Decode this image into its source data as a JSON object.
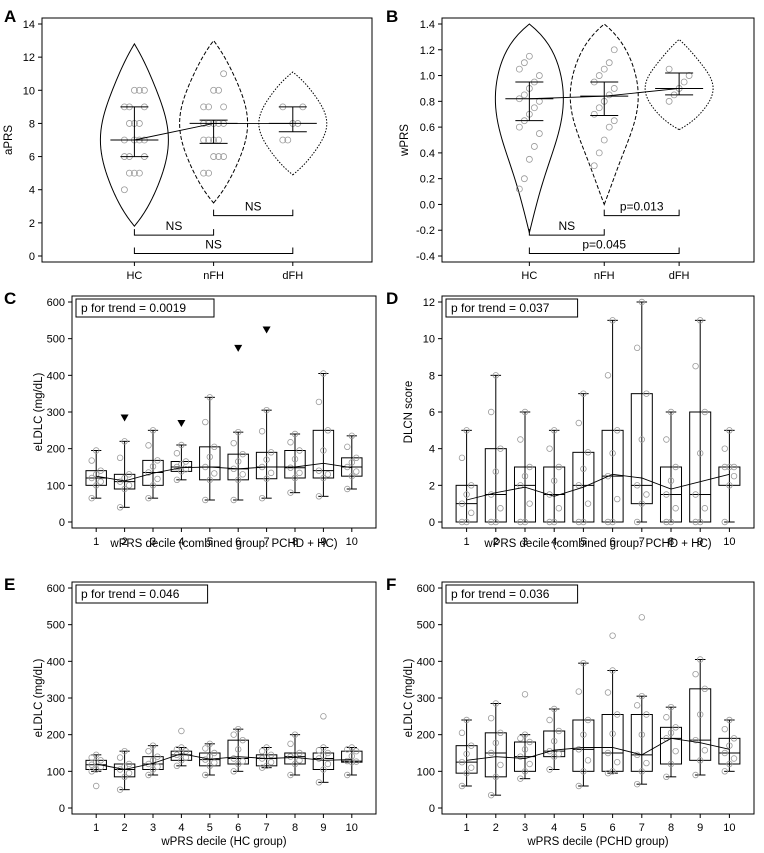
{
  "panels": {
    "A": "A",
    "B": "B",
    "C": "C",
    "D": "D",
    "E": "E",
    "F": "F"
  },
  "chart_data": [
    {
      "panel": "A",
      "type": "violin",
      "categories": [
        "HC",
        "nFH",
        "dFH"
      ],
      "ylabel": "aPRS",
      "xlabel": "",
      "ylim": [
        0,
        14
      ],
      "yticks": [
        0,
        2,
        4,
        6,
        8,
        10,
        12,
        14
      ],
      "medians": [
        7,
        8,
        8
      ],
      "q1": [
        6,
        6.8,
        7.5
      ],
      "q3": [
        9,
        8.2,
        9
      ],
      "whisker_lo": [
        6,
        7,
        7.5
      ],
      "whisker_hi": [
        9,
        8.2,
        9
      ],
      "violin_range": [
        [
          1.8,
          12.8
        ],
        [
          3.2,
          13.0
        ],
        [
          4.9,
          11.1
        ]
      ],
      "points": [
        [
          4,
          5,
          5,
          5,
          6,
          6,
          6,
          7,
          7,
          7,
          7,
          8,
          8,
          8,
          9,
          9,
          9,
          10,
          10,
          10
        ],
        [
          5,
          5,
          6,
          6,
          6,
          7,
          7,
          7,
          7,
          8,
          8,
          8,
          8,
          8,
          9,
          9,
          9,
          10,
          10,
          11
        ],
        [
          7,
          7,
          8,
          8,
          9,
          9
        ]
      ],
      "comparisons": [
        {
          "from": "HC",
          "to": "nFH",
          "label": "NS"
        },
        {
          "from": "nFH",
          "to": "dFH",
          "label": "NS"
        },
        {
          "from": "HC",
          "to": "dFH",
          "label": "NS"
        }
      ]
    },
    {
      "panel": "B",
      "type": "violin",
      "categories": [
        "HC",
        "nFH",
        "dFH"
      ],
      "ylabel": "wPRS",
      "xlabel": "",
      "ylim": [
        -0.4,
        1.4
      ],
      "yticks": [
        -0.4,
        -0.2,
        0.0,
        0.2,
        0.4,
        0.6,
        0.8,
        1.0,
        1.2,
        1.4
      ],
      "medians": [
        0.82,
        0.84,
        0.9
      ],
      "q1": [
        0.65,
        0.69,
        0.85
      ],
      "q3": [
        0.95,
        0.95,
        1.02
      ],
      "whisker_lo": [
        0.65,
        0.69,
        0.85
      ],
      "whisker_hi": [
        0.95,
        0.95,
        1.02
      ],
      "violin_range": [
        [
          -0.22,
          1.4
        ],
        [
          0.0,
          1.4
        ],
        [
          0.58,
          1.28
        ]
      ],
      "points": [
        [
          0.12,
          0.2,
          0.35,
          0.45,
          0.55,
          0.6,
          0.65,
          0.7,
          0.75,
          0.8,
          0.82,
          0.85,
          0.9,
          0.95,
          1.0,
          1.05,
          1.1,
          1.15
        ],
        [
          0.3,
          0.4,
          0.5,
          0.6,
          0.65,
          0.7,
          0.75,
          0.8,
          0.85,
          0.9,
          0.95,
          1.0,
          1.05,
          1.1,
          1.2
        ],
        [
          0.8,
          0.85,
          0.9,
          0.95,
          1.0,
          1.05
        ]
      ],
      "comparisons": [
        {
          "from": "HC",
          "to": "nFH",
          "label": "NS"
        },
        {
          "from": "nFH",
          "to": "dFH",
          "label": "p=0.013"
        },
        {
          "from": "HC",
          "to": "dFH",
          "label": "p=0.045"
        }
      ]
    },
    {
      "panel": "C",
      "type": "box",
      "annotation": "p for trend = 0.0019",
      "categories": [
        "1",
        "2",
        "3",
        "4",
        "5",
        "6",
        "7",
        "8",
        "9",
        "10"
      ],
      "xlabel": "wPRS decile (combined group: PCHD + HC)",
      "ylabel": "eLDLC (mg/dL)",
      "ylim": [
        0,
        600
      ],
      "yticks": [
        0,
        100,
        200,
        300,
        400,
        500,
        600
      ],
      "q1": [
        100,
        90,
        100,
        138,
        115,
        115,
        118,
        120,
        120,
        125
      ],
      "median": [
        120,
        110,
        135,
        150,
        150,
        145,
        150,
        148,
        140,
        150
      ],
      "q3": [
        140,
        130,
        168,
        165,
        205,
        185,
        190,
        195,
        250,
        175
      ],
      "whisker_lo": [
        65,
        40,
        65,
        115,
        60,
        60,
        65,
        80,
        70,
        90
      ],
      "whisker_hi": [
        195,
        220,
        250,
        210,
        340,
        245,
        305,
        240,
        405,
        235
      ],
      "mean": [
        125,
        112,
        133,
        148,
        150,
        145,
        150,
        150,
        160,
        148
      ],
      "outliers": [
        [
          2,
          285
        ],
        [
          4,
          270
        ],
        [
          6,
          475
        ],
        [
          7,
          525
        ]
      ]
    },
    {
      "panel": "D",
      "type": "box",
      "annotation": "p for trend = 0.037",
      "categories": [
        "1",
        "2",
        "3",
        "4",
        "5",
        "6",
        "7",
        "8",
        "9",
        "10"
      ],
      "xlabel": "wPRS decile (combined group: PCHD + HC)",
      "ylabel": "DLCN score",
      "ylim": [
        0,
        12
      ],
      "yticks": [
        0,
        2,
        4,
        6,
        8,
        10,
        12
      ],
      "q1": [
        0,
        0,
        0,
        0,
        0,
        0,
        1,
        0,
        0,
        2
      ],
      "median": [
        1,
        1.5,
        2,
        1.5,
        2,
        2.5,
        2,
        1.5,
        1.5,
        3
      ],
      "q3": [
        2,
        4,
        3,
        3,
        3.8,
        5,
        7,
        3,
        6,
        3
      ],
      "whisker_lo": [
        0,
        0,
        0,
        0,
        0,
        0,
        0,
        0,
        0,
        0
      ],
      "whisker_hi": [
        5,
        8,
        6,
        5,
        7,
        11,
        12,
        6,
        11,
        5
      ],
      "mean": [
        1.2,
        1.6,
        1.9,
        1.4,
        1.9,
        2.6,
        2.4,
        1.8,
        2.2,
        2.6
      ],
      "outliers": []
    },
    {
      "panel": "E",
      "type": "box",
      "annotation": "p for trend = 0.046",
      "categories": [
        "1",
        "2",
        "3",
        "4",
        "5",
        "6",
        "7",
        "8",
        "9",
        "10"
      ],
      "xlabel": "wPRS decile (HC group)",
      "ylabel": "eLDLC (mg/dL)",
      "ylim": [
        0,
        600
      ],
      "yticks": [
        0,
        100,
        200,
        300,
        400,
        500,
        600
      ],
      "q1": [
        105,
        85,
        105,
        130,
        115,
        120,
        115,
        120,
        105,
        125
      ],
      "median": [
        118,
        105,
        120,
        145,
        132,
        135,
        135,
        140,
        135,
        128
      ],
      "q3": [
        130,
        120,
        140,
        155,
        150,
        185,
        145,
        150,
        150,
        155
      ],
      "whisker_lo": [
        100,
        50,
        90,
        115,
        90,
        100,
        110,
        90,
        70,
        90
      ],
      "whisker_hi": [
        145,
        155,
        170,
        165,
        175,
        215,
        165,
        200,
        165,
        165
      ],
      "mean": [
        120,
        105,
        122,
        148,
        133,
        140,
        135,
        138,
        130,
        132
      ],
      "outliers": [
        [
          1,
          60
        ],
        [
          9,
          250
        ],
        [
          4,
          210
        ]
      ]
    },
    {
      "panel": "F",
      "type": "box",
      "annotation": "p for trend = 0.036",
      "categories": [
        "1",
        "2",
        "3",
        "4",
        "5",
        "6",
        "7",
        "8",
        "9",
        "10"
      ],
      "xlabel": "wPRS decile (PCHD group)",
      "ylabel": "eLDLC (mg/dL)",
      "ylim": [
        0,
        600
      ],
      "yticks": [
        0,
        100,
        200,
        300,
        400,
        500,
        600
      ],
      "q1": [
        95,
        85,
        100,
        140,
        100,
        100,
        100,
        120,
        130,
        120
      ],
      "median": [
        125,
        150,
        140,
        155,
        160,
        150,
        145,
        190,
        185,
        150
      ],
      "q3": [
        170,
        205,
        180,
        210,
        240,
        255,
        255,
        220,
        325,
        190
      ],
      "whisker_lo": [
        60,
        35,
        80,
        105,
        60,
        95,
        65,
        85,
        90,
        100
      ],
      "whisker_hi": [
        240,
        285,
        200,
        270,
        395,
        375,
        305,
        275,
        405,
        240
      ],
      "mean": [
        130,
        140,
        135,
        158,
        165,
        165,
        145,
        190,
        178,
        160
      ],
      "outliers": [
        [
          3,
          310
        ],
        [
          6,
          470
        ],
        [
          7,
          520
        ]
      ]
    }
  ]
}
